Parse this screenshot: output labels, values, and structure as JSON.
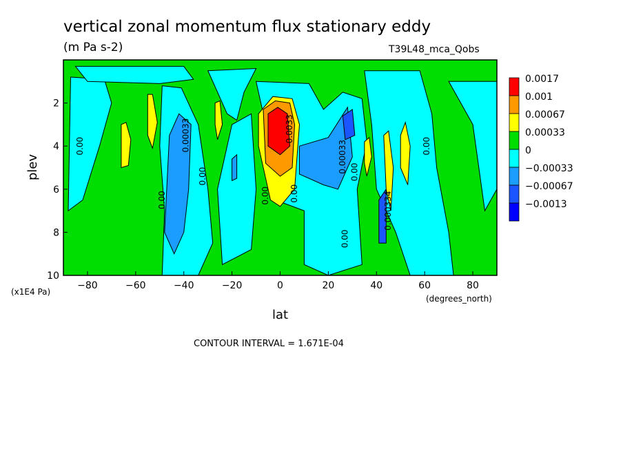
{
  "title": "vertical zonal momentum flux stationary eddy",
  "units": "(m Pa s-2)",
  "run_label": "T39L48_mca_Qobs",
  "contour_interval_text": "CONTOUR INTERVAL = 1.671E-04",
  "chart_data": {
    "type": "heatmap",
    "xlabel": "lat",
    "x_unit": "(degrees_north)",
    "ylabel": "plev",
    "y_unit": "(x1E4 Pa)",
    "xlim": [
      -90,
      90
    ],
    "ylim": [
      0,
      10
    ],
    "y_inverted": true,
    "x_ticks": [
      "-80",
      "-60",
      "-40",
      "-20",
      "0",
      "20",
      "40",
      "60",
      "80"
    ],
    "y_ticks": [
      "2",
      "4",
      "6",
      "8",
      "10"
    ],
    "legend": {
      "position": "right",
      "labels": [
        "0.0017",
        "0.001",
        "0.00067",
        "0.00033",
        "0",
        "-0.00033",
        "-0.00067",
        "-0.0013"
      ],
      "colors": [
        "#ff0000",
        "#ff9900",
        "#ffff00",
        "#00dd00",
        "#00ffff",
        "#1a9dff",
        "#1a55ff",
        "#0000ff"
      ]
    },
    "background_color": "#00dd00",
    "regions": [
      {
        "name": "cyan-nw",
        "level": "#00ffff",
        "pts": [
          [
            -87,
            0.8
          ],
          [
            -73,
            0.9
          ],
          [
            -70,
            2
          ],
          [
            -75,
            4
          ],
          [
            -82,
            6.5
          ],
          [
            -88,
            7
          ]
        ]
      },
      {
        "name": "cyan-polar-n",
        "level": "#00ffff",
        "pts": [
          [
            -85,
            0.3
          ],
          [
            -40,
            0.3
          ],
          [
            -36,
            0.9
          ],
          [
            -50,
            1.1
          ],
          [
            -80,
            1
          ]
        ]
      },
      {
        "name": "cyan-top",
        "level": "#00ffff",
        "pts": [
          [
            -30,
            0.5
          ],
          [
            -10,
            0.4
          ],
          [
            -15,
            1.5
          ],
          [
            -18,
            2.8
          ],
          [
            -22,
            2.5
          ]
        ]
      },
      {
        "name": "cyan-sh",
        "level": "#00ffff",
        "pts": [
          [
            -49,
            1.2
          ],
          [
            -41,
            1.3
          ],
          [
            -34,
            3
          ],
          [
            -30,
            6
          ],
          [
            -28,
            8.5
          ],
          [
            -34,
            10
          ],
          [
            -49,
            10
          ],
          [
            -48,
            7
          ],
          [
            -50,
            4
          ]
        ]
      },
      {
        "name": "cyan-sh-mid",
        "level": "#00ffff",
        "pts": [
          [
            -20,
            3
          ],
          [
            -12,
            2.5
          ],
          [
            -10,
            6
          ],
          [
            -12,
            8.8
          ],
          [
            -24,
            9.5
          ],
          [
            -26,
            6
          ]
        ]
      },
      {
        "name": "cyan-eq",
        "level": "#00ffff",
        "pts": [
          [
            -10,
            1
          ],
          [
            12,
            1.1
          ],
          [
            18,
            2.3
          ],
          [
            26,
            1.5
          ],
          [
            34,
            1.8
          ],
          [
            36,
            3.8
          ],
          [
            32,
            6
          ],
          [
            34,
            9.5
          ],
          [
            20,
            10
          ],
          [
            10,
            9.5
          ],
          [
            10,
            7
          ],
          [
            -2,
            6.5
          ],
          [
            -6,
            3
          ]
        ]
      },
      {
        "name": "cyan-ne",
        "level": "#00ffff",
        "pts": [
          [
            35,
            0.5
          ],
          [
            58,
            0.5
          ],
          [
            63,
            2.5
          ],
          [
            65,
            5
          ],
          [
            70,
            8
          ],
          [
            72,
            10
          ],
          [
            54,
            10
          ],
          [
            48,
            8
          ],
          [
            40,
            6
          ],
          [
            38,
            3
          ]
        ]
      },
      {
        "name": "cyan-far-n",
        "level": "#00ffff",
        "pts": [
          [
            70,
            1
          ],
          [
            90,
            1
          ],
          [
            90,
            6
          ],
          [
            85,
            7
          ],
          [
            80,
            3
          ]
        ]
      },
      {
        "name": "blue-sh",
        "level": "#1a9dff",
        "pts": [
          [
            -46,
            3.5
          ],
          [
            -42,
            2.5
          ],
          [
            -37,
            3
          ],
          [
            -38,
            6
          ],
          [
            -40,
            8
          ],
          [
            -44,
            9
          ],
          [
            -48,
            8
          ]
        ]
      },
      {
        "name": "blue-sh-small",
        "level": "#1a9dff",
        "pts": [
          [
            -20,
            4.6
          ],
          [
            -18,
            4.4
          ],
          [
            -18,
            5.5
          ],
          [
            -20,
            5.6
          ]
        ]
      },
      {
        "name": "blue-eq",
        "level": "#1a9dff",
        "pts": [
          [
            8,
            4
          ],
          [
            20,
            3.6
          ],
          [
            28,
            2.2
          ],
          [
            30,
            4.5
          ],
          [
            24,
            6
          ],
          [
            18,
            5.8
          ],
          [
            8,
            5.3
          ]
        ]
      },
      {
        "name": "blue-center",
        "level": "#1a55ff",
        "pts": [
          [
            26,
            2.6
          ],
          [
            30,
            2.3
          ],
          [
            31,
            3.5
          ],
          [
            27,
            3.7
          ]
        ]
      },
      {
        "name": "blue-40n",
        "level": "#1a55ff",
        "pts": [
          [
            41,
            6.5
          ],
          [
            44,
            6
          ],
          [
            44,
            8.5
          ],
          [
            41,
            8.5
          ]
        ]
      },
      {
        "name": "yellow-eq",
        "level": "#ffff00",
        "pts": [
          [
            -9,
            2.5
          ],
          [
            -3,
            1.7
          ],
          [
            5,
            1.8
          ],
          [
            8,
            3
          ],
          [
            6,
            6
          ],
          [
            0,
            6.8
          ],
          [
            -4,
            6.5
          ],
          [
            -9,
            4
          ]
        ]
      },
      {
        "name": "orange-eq",
        "level": "#ff9900",
        "pts": [
          [
            -7,
            2.3
          ],
          [
            -2,
            1.9
          ],
          [
            4,
            2
          ],
          [
            6,
            3
          ],
          [
            5,
            5
          ],
          [
            0,
            5.4
          ],
          [
            -6,
            4.8
          ]
        ]
      },
      {
        "name": "red-eq",
        "level": "#ff0000",
        "pts": [
          [
            -5,
            2.5
          ],
          [
            -1,
            2.2
          ],
          [
            3,
            2.5
          ],
          [
            4,
            4
          ],
          [
            0,
            4.4
          ],
          [
            -5,
            4
          ]
        ]
      },
      {
        "name": "yellow-a",
        "level": "#ffff00",
        "pts": [
          [
            -66,
            3
          ],
          [
            -64,
            2.9
          ],
          [
            -62,
            3.7
          ],
          [
            -63,
            4.9
          ],
          [
            -66,
            5
          ]
        ]
      },
      {
        "name": "yellow-b",
        "level": "#ffff00",
        "pts": [
          [
            -55,
            1.6
          ],
          [
            -53,
            1.6
          ],
          [
            -51,
            2.9
          ],
          [
            -53,
            4.1
          ],
          [
            -55,
            3.5
          ]
        ]
      },
      {
        "name": "yellow-c",
        "level": "#ffff00",
        "pts": [
          [
            -27,
            2
          ],
          [
            -25,
            1.9
          ],
          [
            -24,
            3
          ],
          [
            -26,
            3.7
          ],
          [
            -27,
            3
          ]
        ]
      },
      {
        "name": "yellow-d",
        "level": "#ffff00",
        "pts": [
          [
            35,
            3.8
          ],
          [
            37,
            3.6
          ],
          [
            38,
            4.5
          ],
          [
            36,
            5.4
          ],
          [
            35,
            4.8
          ]
        ]
      },
      {
        "name": "yellow-e",
        "level": "#ffff00",
        "pts": [
          [
            43,
            3.5
          ],
          [
            45,
            3.3
          ],
          [
            47,
            5
          ],
          [
            46,
            7
          ],
          [
            44,
            6
          ]
        ]
      },
      {
        "name": "yellow-f",
        "level": "#ffff00",
        "pts": [
          [
            50,
            3.5
          ],
          [
            52,
            2.9
          ],
          [
            54,
            4
          ],
          [
            53,
            5.8
          ],
          [
            50,
            5
          ]
        ]
      }
    ],
    "contour_labels": [
      {
        "text": "0.00",
        "x": -82,
        "y": 4.0
      },
      {
        "text": "0.00033",
        "x": -38,
        "y": 3.5
      },
      {
        "text": "0.00",
        "x": -31,
        "y": 5.4
      },
      {
        "text": "0.00",
        "x": -48,
        "y": 6.5
      },
      {
        "text": "0.00",
        "x": -5,
        "y": 6.3
      },
      {
        "text": "0.0033",
        "x": 5,
        "y": 3.2
      },
      {
        "text": "0.00",
        "x": 7,
        "y": 6.2
      },
      {
        "text": "0.00033",
        "x": 27,
        "y": 4.5
      },
      {
        "text": "0.00",
        "x": 32,
        "y": 5.2
      },
      {
        "text": "0.000334",
        "x": 46,
        "y": 7.0
      },
      {
        "text": "0.00",
        "x": 28,
        "y": 8.3
      },
      {
        "text": "0.00",
        "x": 62,
        "y": 4.0
      }
    ]
  }
}
